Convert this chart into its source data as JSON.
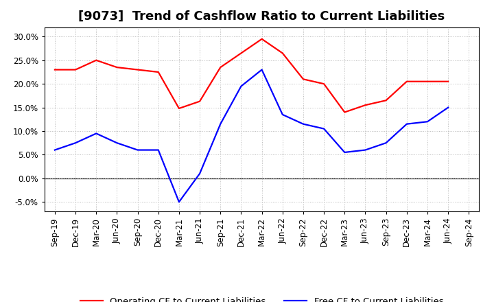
{
  "title": "[9073]  Trend of Cashflow Ratio to Current Liabilities",
  "x_labels": [
    "Sep-19",
    "Dec-19",
    "Mar-20",
    "Jun-20",
    "Sep-20",
    "Dec-20",
    "Mar-21",
    "Jun-21",
    "Sep-21",
    "Dec-21",
    "Mar-22",
    "Jun-22",
    "Sep-22",
    "Dec-22",
    "Mar-23",
    "Jun-23",
    "Sep-23",
    "Dec-23",
    "Mar-24",
    "Jun-24",
    "Sep-24"
  ],
  "operating_cf": [
    0.23,
    0.23,
    0.25,
    0.235,
    0.23,
    0.225,
    0.148,
    0.163,
    0.235,
    0.265,
    0.295,
    0.265,
    0.21,
    0.2,
    0.14,
    0.155,
    0.165,
    0.205,
    0.205,
    0.205,
    null
  ],
  "free_cf": [
    0.06,
    0.075,
    0.095,
    0.075,
    0.06,
    0.06,
    -0.05,
    0.01,
    0.115,
    0.195,
    0.23,
    0.135,
    0.115,
    0.105,
    0.055,
    0.06,
    0.075,
    0.115,
    0.12,
    0.15,
    null
  ],
  "operating_color": "#ff0000",
  "free_color": "#0000ff",
  "ylim": [
    -0.07,
    0.32
  ],
  "yticks": [
    -0.05,
    0.0,
    0.05,
    0.1,
    0.15,
    0.2,
    0.25,
    0.3
  ],
  "background_color": "#ffffff",
  "grid_color": "#bbbbbb",
  "legend_operating": "Operating CF to Current Liabilities",
  "legend_free": "Free CF to Current Liabilities",
  "title_fontsize": 13,
  "axis_fontsize": 8.5,
  "legend_fontsize": 9.5,
  "line_width": 1.6
}
